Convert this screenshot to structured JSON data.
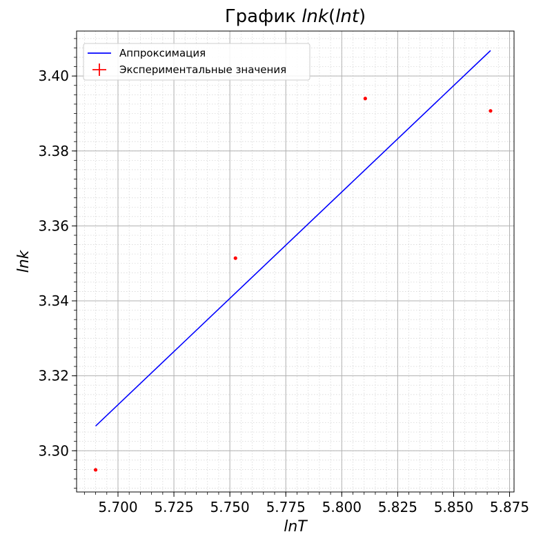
{
  "chart_data": {
    "type": "scatter",
    "title_prefix": "График ",
    "title_math": "lnk(lnt)",
    "title_math_parts": {
      "func": "lnk",
      "open": "(",
      "arg": "lnt",
      "close": ")"
    },
    "xlabel": "lnT",
    "ylabel": "lnk",
    "xlim": [
      5.6815,
      5.877
    ],
    "ylim": [
      3.289,
      3.412
    ],
    "x_ticks": [
      5.7,
      5.725,
      5.75,
      5.775,
      5.8,
      5.825,
      5.85,
      5.875
    ],
    "x_tick_labels": [
      "5.700",
      "5.725",
      "5.750",
      "5.775",
      "5.800",
      "5.825",
      "5.850",
      "5.875"
    ],
    "y_ticks": [
      3.3,
      3.32,
      3.34,
      3.36,
      3.38,
      3.4
    ],
    "y_tick_labels": [
      "3.30",
      "3.32",
      "3.34",
      "3.36",
      "3.38",
      "3.40"
    ],
    "x_minor_step": 0.005,
    "y_minor_step": 0.0025,
    "grid": {
      "major": true,
      "minor": true
    },
    "legend_position": "top-left",
    "series": [
      {
        "name": "Аппроксимация",
        "kind": "line",
        "color": "#0000ff",
        "x": [
          5.69,
          5.8665
        ],
        "y": [
          3.3066,
          3.4068
        ]
      },
      {
        "name": "Экспериментальные значения",
        "kind": "errorbar",
        "color": "#ff0000",
        "x": [
          5.69,
          5.7525,
          5.8105,
          5.8665
        ],
        "y": [
          3.2949,
          3.3514,
          3.394,
          3.3907
        ]
      }
    ]
  }
}
